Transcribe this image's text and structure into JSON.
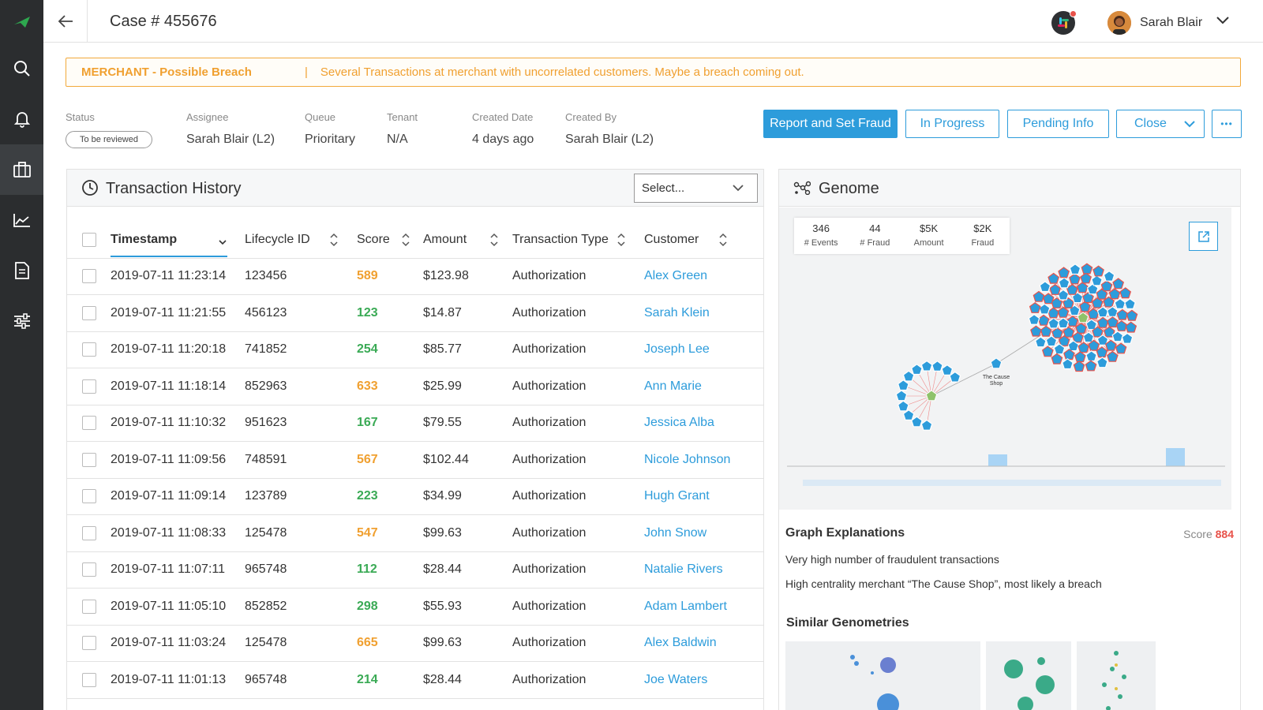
{
  "header": {
    "case_title": "Case # 455676",
    "user_name": "Sarah Blair"
  },
  "alert": {
    "title": "MERCHANT - Possible Breach",
    "separator": "|",
    "message": "Several Transactions at merchant with uncorrelated customers. Maybe a breach coming out."
  },
  "meta": {
    "status_label": "Status",
    "status_value": "To be reviewed",
    "assignee_label": "Assignee",
    "assignee_value": "Sarah Blair (L2)",
    "queue_label": "Queue",
    "queue_value": "Prioritary",
    "tenant_label": "Tenant",
    "tenant_value": "N/A",
    "created_date_label": "Created Date",
    "created_date_value": "4 days ago",
    "created_by_label": "Created By",
    "created_by_value": "Sarah Blair (L2)"
  },
  "actions": {
    "report": "Report and Set Fraud",
    "in_progress": "In Progress",
    "pending": "Pending Info",
    "close": "Close",
    "more": "•••"
  },
  "transactions": {
    "title": "Transaction History",
    "select_placeholder": "Select...",
    "columns": [
      "Timestamp",
      "Lifecycle ID",
      "Score",
      "Amount",
      "Transaction Type",
      "Customer"
    ],
    "rows": [
      {
        "ts": "2019-07-11 11:23:14",
        "id": "123456",
        "score": "589",
        "level": "high",
        "amount": "$123.98",
        "type": "Authorization",
        "customer": "Alex Green"
      },
      {
        "ts": "2019-07-11 11:21:55",
        "id": "456123",
        "score": "123",
        "level": "low",
        "amount": "$14.87",
        "type": "Authorization",
        "customer": "Sarah Klein"
      },
      {
        "ts": "2019-07-11 11:20:18",
        "id": "741852",
        "score": "254",
        "level": "low",
        "amount": "$85.77",
        "type": "Authorization",
        "customer": "Joseph Lee"
      },
      {
        "ts": "2019-07-11 11:18:14",
        "id": "852963",
        "score": "633",
        "level": "high",
        "amount": "$25.99",
        "type": "Authorization",
        "customer": "Ann Marie"
      },
      {
        "ts": "2019-07-11 11:10:32",
        "id": "951623",
        "score": "167",
        "level": "low",
        "amount": "$79.55",
        "type": "Authorization",
        "customer": "Jessica Alba"
      },
      {
        "ts": "2019-07-11 11:09:56",
        "id": "748591",
        "score": "567",
        "level": "high",
        "amount": "$102.44",
        "type": "Authorization",
        "customer": "Nicole Johnson"
      },
      {
        "ts": "2019-07-11 11:09:14",
        "id": "123789",
        "score": "223",
        "level": "low",
        "amount": "$34.99",
        "type": "Authorization",
        "customer": "Hugh Grant"
      },
      {
        "ts": "2019-07-11 11:08:33",
        "id": "125478",
        "score": "547",
        "level": "high",
        "amount": "$99.63",
        "type": "Authorization",
        "customer": "John Snow"
      },
      {
        "ts": "2019-07-11 11:07:11",
        "id": "965748",
        "score": "112",
        "level": "low",
        "amount": "$28.44",
        "type": "Authorization",
        "customer": "Natalie Rivers"
      },
      {
        "ts": "2019-07-11 11:05:10",
        "id": "852852",
        "score": "298",
        "level": "low",
        "amount": "$55.93",
        "type": "Authorization",
        "customer": "Adam Lambert"
      },
      {
        "ts": "2019-07-11 11:03:24",
        "id": "125478",
        "score": "665",
        "level": "high",
        "amount": "$99.63",
        "type": "Authorization",
        "customer": "Alex Baldwin"
      },
      {
        "ts": "2019-07-11 11:01:13",
        "id": "965748",
        "score": "214",
        "level": "low",
        "amount": "$28.44",
        "type": "Authorization",
        "customer": "Joe Waters"
      }
    ]
  },
  "genome": {
    "title": "Genome",
    "stats": [
      {
        "value": "346",
        "label": "# Events"
      },
      {
        "value": "44",
        "label": "# Fraud"
      },
      {
        "value": "$5K",
        "label": "Amount"
      },
      {
        "value": "$2K",
        "label": "Fraud"
      }
    ],
    "merchant_label_1": "The Cause",
    "merchant_label_2": "Shop",
    "graph_explanations_title": "Graph Explanations",
    "score_label": "Score",
    "score_value": "884",
    "explanation_1": "Very high number of fraudulent transactions",
    "explanation_2": "High centrality merchant “The Cause Shop”, most likely a breach",
    "similar_title": "Similar Genometries"
  },
  "colors": {
    "accent": "#2d9cdb",
    "warning": "#f0a030",
    "success": "#3aaa55",
    "danger": "#e8524a",
    "sidebar": "#2b2d2f",
    "logo": "#2ea84f"
  },
  "icons": {
    "sidebar": [
      "logo-icon",
      "search-icon",
      "bell-icon",
      "briefcase-icon",
      "chart-icon",
      "document-icon",
      "sliders-icon"
    ]
  }
}
